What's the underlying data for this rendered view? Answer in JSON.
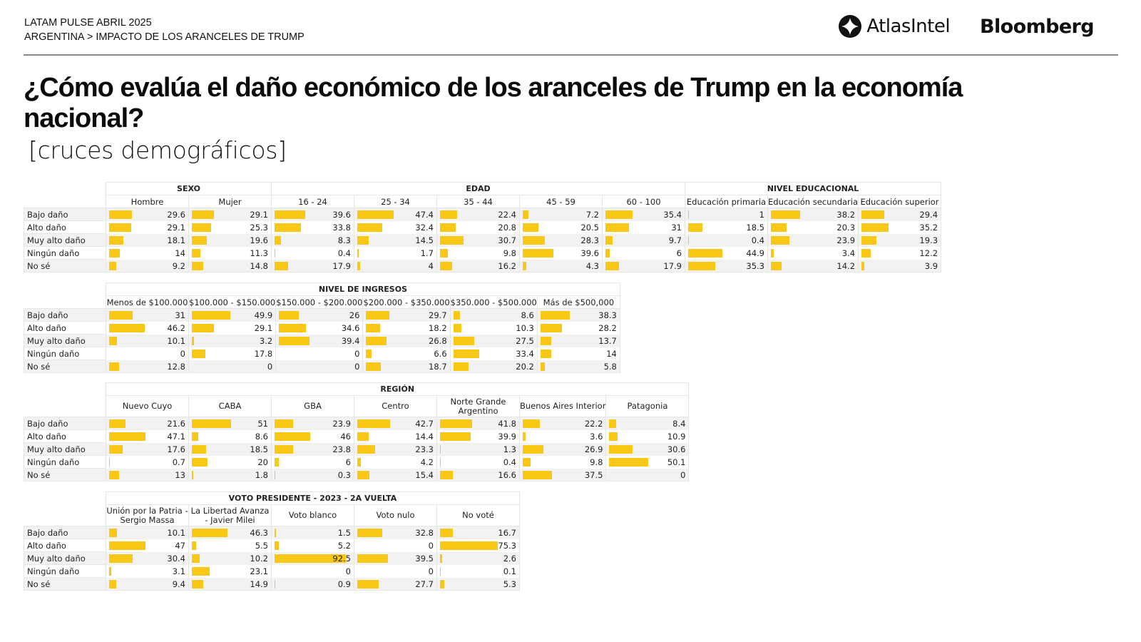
{
  "header": {
    "line1": "LATAM PULSE ABRIL 2025",
    "line2": "ARGENTINA > IMPACTO DE LOS ARANCELES DE TRUMP",
    "logo_atlas": "AtlasIntel",
    "logo_bloomberg": "Bloomberg"
  },
  "title": "¿Cómo evalúa el daño económico de los aranceles de Trump en la economía nacional?",
  "subtitle": "[cruces demográficos]",
  "colors": {
    "bar": "#f9c814",
    "row_shade": "#f2f2f2",
    "border": "#e6e6e6"
  },
  "chart_data": {
    "type": "table",
    "title": "¿Cómo evalúa el daño económico de los aranceles de Trump en la economía nacional?",
    "row_labels": [
      "Bajo daño",
      "Alto daño",
      "Muy alto daño",
      "Ningún daño",
      "No sé"
    ],
    "bar_scale_max": 100,
    "tables": [
      {
        "groups": [
          {
            "name": "SEXO",
            "columns": [
              {
                "label": "Hombre",
                "values": [
                  29.6,
                  29.1,
                  18.1,
                  14,
                  9.2
                ]
              },
              {
                "label": "Mujer",
                "values": [
                  29.1,
                  25.3,
                  19.6,
                  11.3,
                  14.8
                ]
              }
            ]
          },
          {
            "name": "EDAD",
            "columns": [
              {
                "label": "16 - 24",
                "values": [
                  39.6,
                  33.8,
                  8.3,
                  0.4,
                  17.9
                ]
              },
              {
                "label": "25 - 34",
                "values": [
                  47.4,
                  32.4,
                  14.5,
                  1.7,
                  4
                ]
              },
              {
                "label": "35 - 44",
                "values": [
                  22.4,
                  20.8,
                  30.7,
                  9.8,
                  16.2
                ]
              },
              {
                "label": "45 - 59",
                "values": [
                  7.2,
                  20.5,
                  28.3,
                  39.6,
                  4.3
                ]
              },
              {
                "label": "60 - 100",
                "values": [
                  35.4,
                  31,
                  9.7,
                  6,
                  17.9
                ]
              }
            ]
          },
          {
            "name": "NIVEL EDUCACIONAL",
            "columns": [
              {
                "label": "Educación primaria",
                "values": [
                  1,
                  18.5,
                  0.4,
                  44.9,
                  35.3
                ]
              },
              {
                "label": "Educación secundaria",
                "values": [
                  38.2,
                  20.3,
                  23.9,
                  3.4,
                  14.2
                ]
              },
              {
                "label": "Educación superior",
                "values": [
                  29.4,
                  35.2,
                  19.3,
                  12.2,
                  3.9
                ]
              }
            ]
          }
        ]
      },
      {
        "groups": [
          {
            "name": "NIVEL DE INGRESOS",
            "columns": [
              {
                "label": "Menos de $100.000",
                "values": [
                  31,
                  46.2,
                  10.1,
                  0,
                  12.8
                ]
              },
              {
                "label": "$100.000 - $150.000",
                "values": [
                  49.9,
                  29.1,
                  3.2,
                  17.8,
                  0
                ]
              },
              {
                "label": "$150.000 - $200.000",
                "values": [
                  26,
                  34.6,
                  39.4,
                  0,
                  0
                ]
              },
              {
                "label": "$200.000 - $350.000",
                "values": [
                  29.7,
                  18.2,
                  26.8,
                  6.6,
                  18.7
                ]
              },
              {
                "label": "$350.000 - $500.000",
                "values": [
                  8.6,
                  10.3,
                  27.5,
                  33.4,
                  20.2
                ]
              },
              {
                "label": "Más de $500,000",
                "values": [
                  38.3,
                  28.2,
                  13.7,
                  14,
                  5.8
                ]
              }
            ]
          }
        ]
      },
      {
        "groups": [
          {
            "name": "REGIÓN",
            "columns": [
              {
                "label": "Nuevo Cuyo",
                "values": [
                  21.6,
                  47.1,
                  17.6,
                  0.7,
                  13
                ]
              },
              {
                "label": "CABA",
                "values": [
                  51,
                  8.6,
                  18.5,
                  20,
                  1.8
                ]
              },
              {
                "label": "GBA",
                "values": [
                  23.9,
                  46,
                  23.8,
                  6,
                  0.3
                ]
              },
              {
                "label": "Centro",
                "values": [
                  42.7,
                  14.4,
                  23.3,
                  4.2,
                  15.4
                ]
              },
              {
                "label": "Norte Grande Argentino",
                "values": [
                  41.8,
                  39.9,
                  1.3,
                  0.4,
                  16.6
                ]
              },
              {
                "label": "Buenos Aires Interior",
                "values": [
                  22.2,
                  3.6,
                  26.9,
                  9.8,
                  37.5
                ]
              },
              {
                "label": "Patagonia",
                "values": [
                  8.4,
                  10.9,
                  30.6,
                  50.1,
                  0
                ]
              }
            ]
          }
        ]
      },
      {
        "groups": [
          {
            "name": "VOTO PRESIDENTE - 2023 - 2A VUELTA",
            "columns": [
              {
                "label": "Unión por la Patria - Sergio Massa",
                "values": [
                  10.1,
                  47,
                  30.4,
                  3.1,
                  9.4
                ]
              },
              {
                "label": "La Libertad Avanza - Javier Milei",
                "values": [
                  46.3,
                  5.5,
                  10.2,
                  23.1,
                  14.9
                ]
              },
              {
                "label": "Voto blanco",
                "values": [
                  1.5,
                  5.2,
                  92.5,
                  0,
                  0.9
                ]
              },
              {
                "label": "Voto nulo",
                "values": [
                  32.8,
                  0,
                  39.5,
                  0,
                  27.7
                ]
              },
              {
                "label": "No voté",
                "values": [
                  16.7,
                  75.3,
                  2.6,
                  0.1,
                  5.3
                ]
              }
            ]
          }
        ]
      }
    ]
  }
}
